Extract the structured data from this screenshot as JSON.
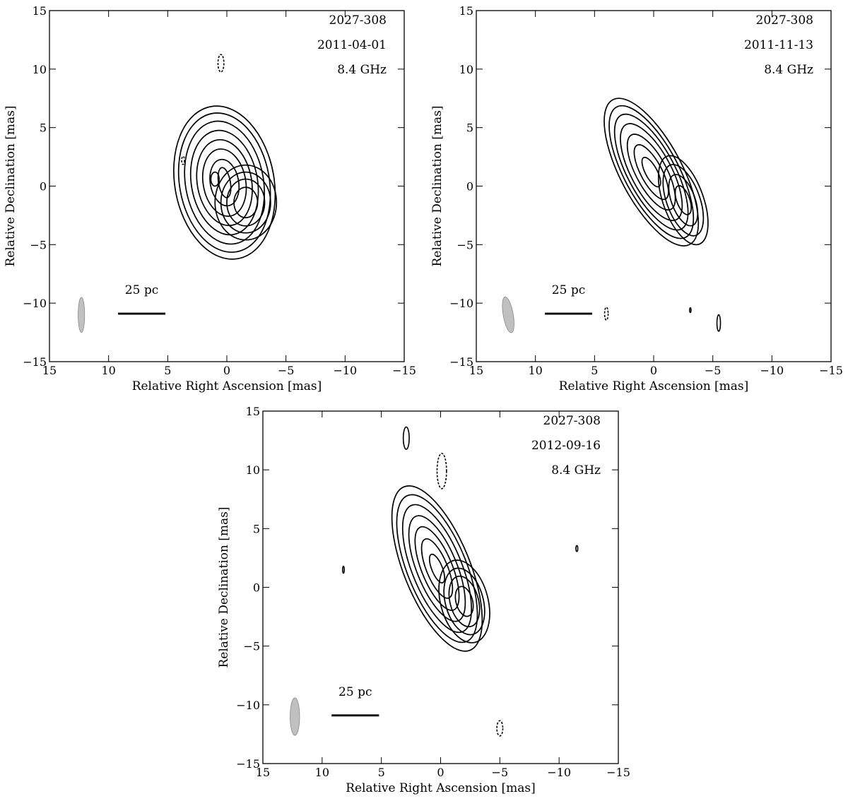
{
  "figure": {
    "panels": [
      {
        "source": "2027-308",
        "date": "2011-04-01",
        "freq": "8.4 GHz",
        "scale_bar": "25 pc"
      },
      {
        "source": "2027-308",
        "date": "2011-11-13",
        "freq": "8.4 GHz",
        "scale_bar": "25 pc"
      },
      {
        "source": "2027-308",
        "date": "2012-09-16",
        "freq": "8.4 GHz",
        "scale_bar": "25 pc"
      }
    ]
  },
  "chart_data": [
    {
      "type": "contour",
      "title": "",
      "xlabel": "Relative Right Ascension [mas]",
      "ylabel": "Relative Declination [mas]",
      "xlim": [
        15,
        -15
      ],
      "ylim": [
        -15,
        15
      ],
      "xticks": [
        15,
        10,
        5,
        0,
        -5,
        -10,
        -15
      ],
      "yticks": [
        -15,
        -10,
        -5,
        0,
        5,
        10,
        15
      ],
      "xtick_labels": [
        "15",
        "10",
        "5",
        "0",
        "−5",
        "−10",
        "−15"
      ],
      "ytick_labels": [
        "−15",
        "−10",
        "−5",
        "0",
        "5",
        "10",
        "15"
      ],
      "annotations": [
        "2027-308",
        "2011-04-01",
        "8.4 GHz"
      ],
      "scale_bar_label": "25 pc",
      "scale_bar_x": [
        9.2,
        5.2
      ],
      "scale_bar_y": -10.9,
      "beam": {
        "x": 12.3,
        "y": -11.0,
        "major": 3.0,
        "minor": 0.55,
        "pa_deg": 0
      },
      "components": [
        {
          "x": 0.2,
          "y": 0.3,
          "levels": [
            [
              4.2,
              6.6,
              -10
            ],
            [
              3.8,
              6.0,
              -10
            ],
            [
              3.3,
              5.3,
              -10
            ],
            [
              2.8,
              4.5,
              -10
            ],
            [
              2.3,
              3.7,
              -10
            ],
            [
              1.8,
              2.9,
              -10
            ],
            [
              1.2,
              2.0,
              -10
            ],
            [
              0.5,
              1.3,
              -10
            ]
          ]
        },
        {
          "x": -1.6,
          "y": -1.4,
          "levels": [
            [
              2.6,
              3.2,
              0
            ],
            [
              2.1,
              2.6,
              0
            ],
            [
              1.6,
              2.0,
              0
            ],
            [
              1.0,
              1.3,
              0
            ]
          ]
        },
        {
          "x": 1.0,
          "y": 0.6,
          "levels": [
            [
              0.35,
              0.6,
              0
            ]
          ]
        }
      ],
      "noise_contours": [
        {
          "x": 0.5,
          "y": 10.5,
          "rx": 0.25,
          "ry": 0.75,
          "pa_deg": 0,
          "style": "dashed"
        },
        {
          "x": 3.7,
          "y": 2.2,
          "rx": 0.12,
          "ry": 0.35,
          "pa_deg": 0,
          "style": "dashed"
        }
      ]
    },
    {
      "type": "contour",
      "title": "",
      "xlabel": "Relative Right Ascension [mas]",
      "ylabel": "Relative Declination [mas]",
      "xlim": [
        15,
        -15
      ],
      "ylim": [
        -15,
        15
      ],
      "xticks": [
        15,
        10,
        5,
        0,
        -5,
        -10,
        -15
      ],
      "yticks": [
        -15,
        -10,
        -5,
        0,
        5,
        10,
        15
      ],
      "xtick_labels": [
        "15",
        "10",
        "5",
        "0",
        "−5",
        "−10",
        "−15"
      ],
      "ytick_labels": [
        "−15",
        "−10",
        "−5",
        "0",
        "5",
        "10",
        "15"
      ],
      "annotations": [
        "2027-308",
        "2011-11-13",
        "8.4 GHz"
      ],
      "scale_bar_label": "25 pc",
      "scale_bar_x": [
        9.2,
        5.2
      ],
      "scale_bar_y": -10.9,
      "beam": {
        "x": 12.3,
        "y": -11.0,
        "major": 3.1,
        "minor": 0.85,
        "pa_deg": -10
      },
      "components": [
        {
          "x": 0.2,
          "y": 1.2,
          "levels": [
            [
              2.6,
              7.0,
              -28
            ],
            [
              2.3,
              6.3,
              -28
            ],
            [
              2.0,
              5.5,
              -28
            ],
            [
              1.7,
              4.6,
              -28
            ],
            [
              1.3,
              3.6,
              -28
            ],
            [
              0.9,
              2.6,
              -28
            ],
            [
              0.5,
              1.4,
              -28
            ]
          ]
        },
        {
          "x": -2.5,
          "y": -1.2,
          "levels": [
            [
              1.7,
              4.0,
              -20
            ],
            [
              1.4,
              3.2,
              -20
            ],
            [
              1.0,
              2.3,
              -20
            ],
            [
              0.55,
              1.3,
              -20
            ]
          ]
        }
      ],
      "noise_contours": [
        {
          "x": 4.0,
          "y": -10.9,
          "rx": 0.15,
          "ry": 0.55,
          "pa_deg": 0,
          "style": "dashed"
        },
        {
          "x": -3.1,
          "y": -10.6,
          "rx": 0.06,
          "ry": 0.2,
          "pa_deg": 0,
          "style": "solid"
        },
        {
          "x": -5.5,
          "y": -11.7,
          "rx": 0.15,
          "ry": 0.7,
          "pa_deg": 0,
          "style": "solid"
        }
      ]
    },
    {
      "type": "contour",
      "title": "",
      "xlabel": "Relative Right Ascension [mas]",
      "ylabel": "Relative Declination [mas]",
      "xlim": [
        15,
        -15
      ],
      "ylim": [
        -15,
        15
      ],
      "xticks": [
        15,
        10,
        5,
        0,
        -5,
        -10,
        -15
      ],
      "yticks": [
        -15,
        -10,
        -5,
        0,
        5,
        10,
        15
      ],
      "xtick_labels": [
        "15",
        "10",
        "5",
        "0",
        "−5",
        "−10",
        "−15"
      ],
      "ytick_labels": [
        "−15",
        "−10",
        "−5",
        "0",
        "5",
        "10",
        "15"
      ],
      "annotations": [
        "2027-308",
        "2012-09-16",
        "8.4 GHz"
      ],
      "scale_bar_label": "25 pc",
      "scale_bar_x": [
        9.2,
        5.2
      ],
      "scale_bar_y": -10.9,
      "beam": {
        "x": 12.3,
        "y": -11.0,
        "major": 3.2,
        "minor": 0.8,
        "pa_deg": 0
      },
      "components": [
        {
          "x": 0.3,
          "y": 1.6,
          "levels": [
            [
              2.8,
              7.5,
              -22
            ],
            [
              2.5,
              6.7,
              -22
            ],
            [
              2.1,
              5.8,
              -22
            ],
            [
              1.7,
              4.8,
              -22
            ],
            [
              1.3,
              3.8,
              -22
            ],
            [
              0.9,
              2.7,
              -22
            ],
            [
              0.45,
              1.3,
              -22
            ]
          ]
        },
        {
          "x": -2.0,
          "y": -1.2,
          "levels": [
            [
              2.0,
              3.6,
              -15
            ],
            [
              1.6,
              2.9,
              -15
            ],
            [
              1.2,
              2.2,
              -15
            ],
            [
              0.7,
              1.3,
              -15
            ]
          ]
        }
      ],
      "noise_contours": [
        {
          "x": 2.9,
          "y": 12.7,
          "rx": 0.25,
          "ry": 0.95,
          "pa_deg": 0,
          "style": "solid"
        },
        {
          "x": -0.1,
          "y": 9.9,
          "rx": 0.4,
          "ry": 1.5,
          "pa_deg": 0,
          "style": "dashed"
        },
        {
          "x": 8.2,
          "y": 1.5,
          "rx": 0.07,
          "ry": 0.3,
          "pa_deg": 0,
          "style": "solid"
        },
        {
          "x": -11.5,
          "y": 3.3,
          "rx": 0.08,
          "ry": 0.25,
          "pa_deg": 0,
          "style": "solid"
        },
        {
          "x": -5.0,
          "y": -12.0,
          "rx": 0.25,
          "ry": 0.65,
          "pa_deg": 0,
          "style": "dashed"
        }
      ]
    }
  ]
}
